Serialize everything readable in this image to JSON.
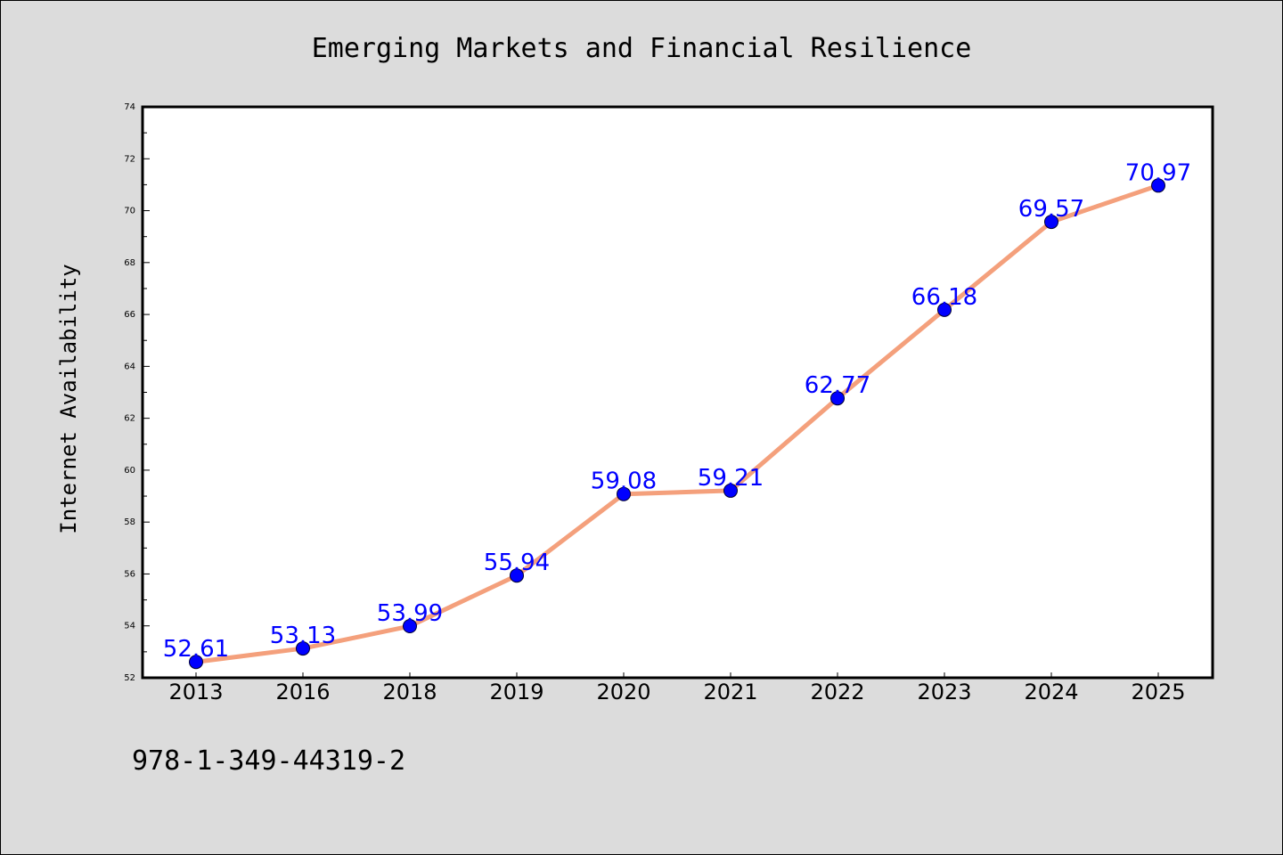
{
  "colors": {
    "background": "#dcdcdc",
    "plot_area": "#ffffff",
    "line": "#f4a07c",
    "marker": "#0000ff",
    "data_label": "#0000ff"
  },
  "chart_data": {
    "type": "line",
    "title": "Emerging Markets and Financial Resilience",
    "xlabel": "",
    "ylabel": "Internet Availability",
    "categories": [
      "2013",
      "2016",
      "2018",
      "2019",
      "2020",
      "2021",
      "2022",
      "2023",
      "2024",
      "2025"
    ],
    "series": [
      {
        "values": [
          52.61,
          53.13,
          53.99,
          55.94,
          59.08,
          59.21,
          62.77,
          66.18,
          69.57,
          70.97
        ]
      }
    ],
    "data_labels": [
      "52.61",
      "53.13",
      "53.99",
      "55.94",
      "59.08",
      "59.21",
      "62.77",
      "66.18",
      "69.57",
      "70.97"
    ],
    "ylim": [
      52,
      74
    ],
    "yticks": [
      52,
      54,
      56,
      58,
      60,
      62,
      64,
      66,
      68,
      70,
      72,
      74
    ],
    "grid": false,
    "legend": "none"
  },
  "footer": {
    "isbn": "978-1-349-44319-2"
  }
}
